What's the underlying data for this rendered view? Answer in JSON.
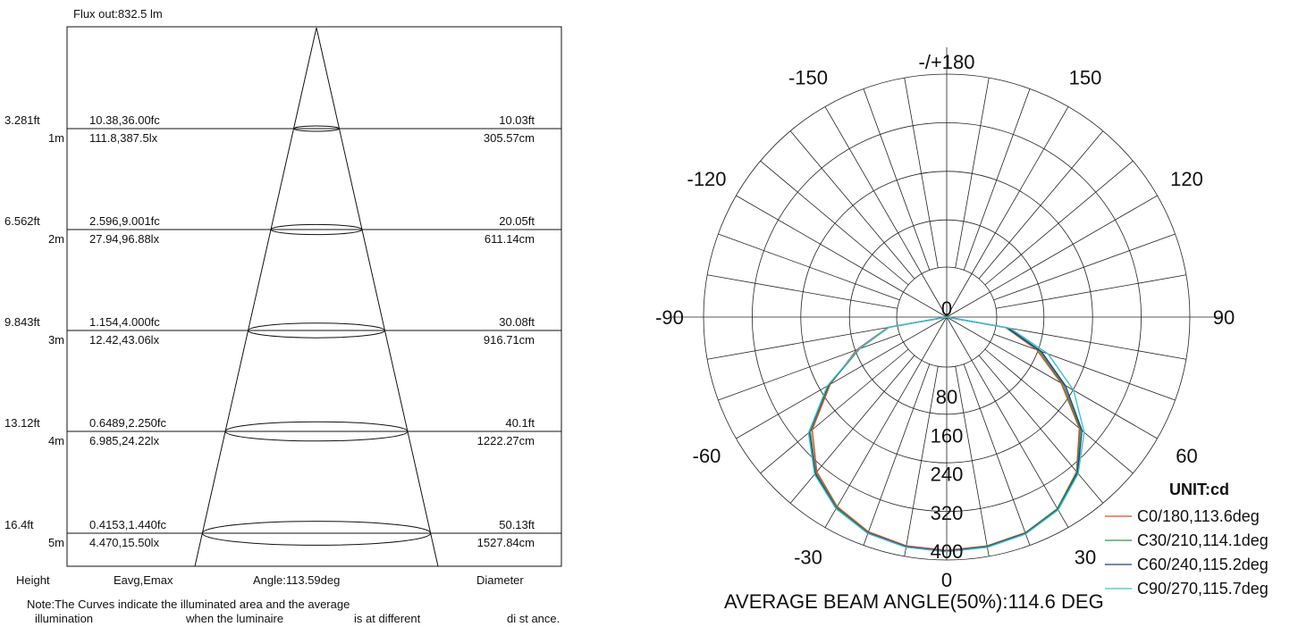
{
  "cone_chart": {
    "flux": "Flux out:832.5 lm",
    "col_height": "Height",
    "col_eavg": "Eavg,Emax",
    "col_angle": "Angle:113.59deg",
    "col_diameter": "Diameter",
    "note_line1": "Note:The Curves indicate the illuminated area and the average",
    "note_line2_a": "illumination",
    "note_line2_b": "when  the  luminaire",
    "note_line2_c": "is  at  different",
    "note_line2_d": "di st ance.",
    "rows": [
      {
        "height_ft": "3.281ft",
        "height_m": "1m",
        "fc": "10.38,36.00fc",
        "lx": "111.8,387.5lx",
        "dia_ft": "10.03ft",
        "dia_cm": "305.57cm"
      },
      {
        "height_ft": "6.562ft",
        "height_m": "2m",
        "fc": "2.596,9.001fc",
        "lx": "27.94,96.88lx",
        "dia_ft": "20.05ft",
        "dia_cm": "611.14cm"
      },
      {
        "height_ft": "9.843ft",
        "height_m": "3m",
        "fc": "1.154,4.000fc",
        "lx": "12.42,43.06lx",
        "dia_ft": "30.08ft",
        "dia_cm": "916.71cm"
      },
      {
        "height_ft": "13.12ft",
        "height_m": "4m",
        "fc": "0.6489,2.250fc",
        "lx": "6.985,24.22lx",
        "dia_ft": "40.1ft",
        "dia_cm": "1222.27cm"
      },
      {
        "height_ft": "16.4ft",
        "height_m": "5m",
        "fc": "0.4153,1.440fc",
        "lx": "4.470,15.50lx",
        "dia_ft": "50.13ft",
        "dia_cm": "1527.84cm"
      }
    ]
  },
  "polar_chart": {
    "unit": "UNIT:cd",
    "beam_note": "AVERAGE BEAM ANGLE(50%):114.6 DEG",
    "angle_labels": [
      {
        "text": "-/+180",
        "deg": 180
      },
      {
        "text": "150",
        "deg": 150
      },
      {
        "text": "-150",
        "deg": -150
      },
      {
        "text": "120",
        "deg": 120
      },
      {
        "text": "-120",
        "deg": -120
      },
      {
        "text": "90",
        "deg": 90
      },
      {
        "text": "-90",
        "deg": -90
      },
      {
        "text": "60",
        "deg": 60
      },
      {
        "text": "-60",
        "deg": -60
      },
      {
        "text": "30",
        "deg": 30
      },
      {
        "text": "-30",
        "deg": -30
      },
      {
        "text": "0",
        "deg": 0
      }
    ],
    "radial_labels": [
      "0",
      "80",
      "160",
      "240",
      "320",
      "400"
    ]
  },
  "chart_data": {
    "type": "line",
    "polar": true,
    "unit": "cd",
    "rlim": [
      0,
      400
    ],
    "angle_range": [
      -180,
      180
    ],
    "series": [
      {
        "name": "C0/180,113.6deg",
        "color": "#e8432a",
        "theta": [
          -90,
          -80,
          -70,
          -60,
          -50,
          -40,
          -30,
          -20,
          -10,
          0,
          10,
          20,
          30,
          40,
          50,
          60,
          70,
          80,
          90
        ],
        "r": [
          0,
          20,
          95,
          175,
          260,
          315,
          350,
          370,
          378,
          380,
          378,
          372,
          355,
          315,
          255,
          170,
          95,
          20,
          0
        ]
      },
      {
        "name": "C30/210,114.1deg",
        "color": "#2e9a38",
        "theta": [
          -90,
          -80,
          -70,
          -60,
          -50,
          -40,
          -30,
          -20,
          -10,
          0,
          10,
          20,
          30,
          40,
          50,
          60,
          70,
          80,
          90
        ],
        "r": [
          0,
          18,
          88,
          178,
          265,
          318,
          352,
          372,
          380,
          382,
          379,
          373,
          355,
          316,
          258,
          175,
          100,
          22,
          0
        ]
      },
      {
        "name": "C60/240,115.2deg",
        "color": "#1f3f8c",
        "theta": [
          -90,
          -80,
          -70,
          -60,
          -50,
          -40,
          -30,
          -20,
          -10,
          0,
          10,
          20,
          30,
          40,
          50,
          60,
          70,
          80,
          90
        ],
        "r": [
          0,
          18,
          90,
          180,
          268,
          320,
          354,
          373,
          380,
          382,
          380,
          374,
          357,
          318,
          262,
          180,
          105,
          25,
          0
        ]
      },
      {
        "name": "C90/270,115.7deg",
        "color": "#3fc0cf",
        "theta": [
          -90,
          -80,
          -70,
          -60,
          -50,
          -40,
          -30,
          -20,
          -10,
          0,
          10,
          20,
          30,
          40,
          50,
          60,
          70,
          80,
          90
        ],
        "r": [
          0,
          18,
          90,
          182,
          270,
          322,
          355,
          374,
          381,
          383,
          381,
          375,
          358,
          320,
          268,
          200,
          120,
          30,
          0
        ]
      }
    ]
  }
}
